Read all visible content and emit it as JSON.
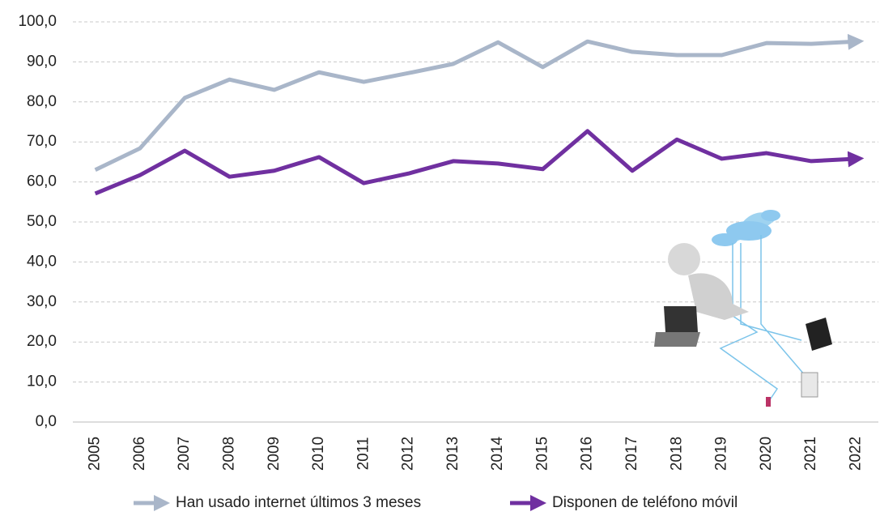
{
  "chart_data": {
    "type": "line",
    "categories": [
      "2005",
      "2006",
      "2007",
      "2008",
      "2009",
      "2010",
      "2011",
      "2012",
      "2013",
      "2014",
      "2015",
      "2016",
      "2017",
      "2018",
      "2019",
      "2020",
      "2021",
      "2022"
    ],
    "series": [
      {
        "name": "Han usado internet últimos 3 meses",
        "color": "#a9b6c9",
        "values": [
          63.0,
          68.4,
          81.0,
          85.6,
          83.0,
          87.4,
          85.0,
          87.2,
          89.5,
          94.9,
          88.7,
          95.1,
          92.5,
          91.7,
          91.7,
          94.7,
          94.5,
          95.1
        ]
      },
      {
        "name": "Disponen de teléfono móvil",
        "color": "#7030a0",
        "values": [
          57.1,
          61.7,
          67.8,
          61.3,
          62.8,
          66.2,
          59.7,
          62.1,
          65.2,
          64.6,
          63.2,
          72.7,
          62.8,
          70.6,
          65.8,
          67.2,
          65.2,
          65.8
        ]
      }
    ],
    "ylim": [
      0,
      100
    ],
    "yticks": [
      {
        "value": 0,
        "label": "0,0"
      },
      {
        "value": 10,
        "label": "10,0"
      },
      {
        "value": 20,
        "label": "20,0"
      },
      {
        "value": 30,
        "label": "30,0"
      },
      {
        "value": 40,
        "label": "40,0"
      },
      {
        "value": 50,
        "label": "50,0"
      },
      {
        "value": 60,
        "label": "60,0"
      },
      {
        "value": 70,
        "label": "70,0"
      },
      {
        "value": 80,
        "label": "80,0"
      },
      {
        "value": 90,
        "label": "90,0"
      },
      {
        "value": 100,
        "label": "100,0"
      }
    ],
    "grid": true
  }
}
